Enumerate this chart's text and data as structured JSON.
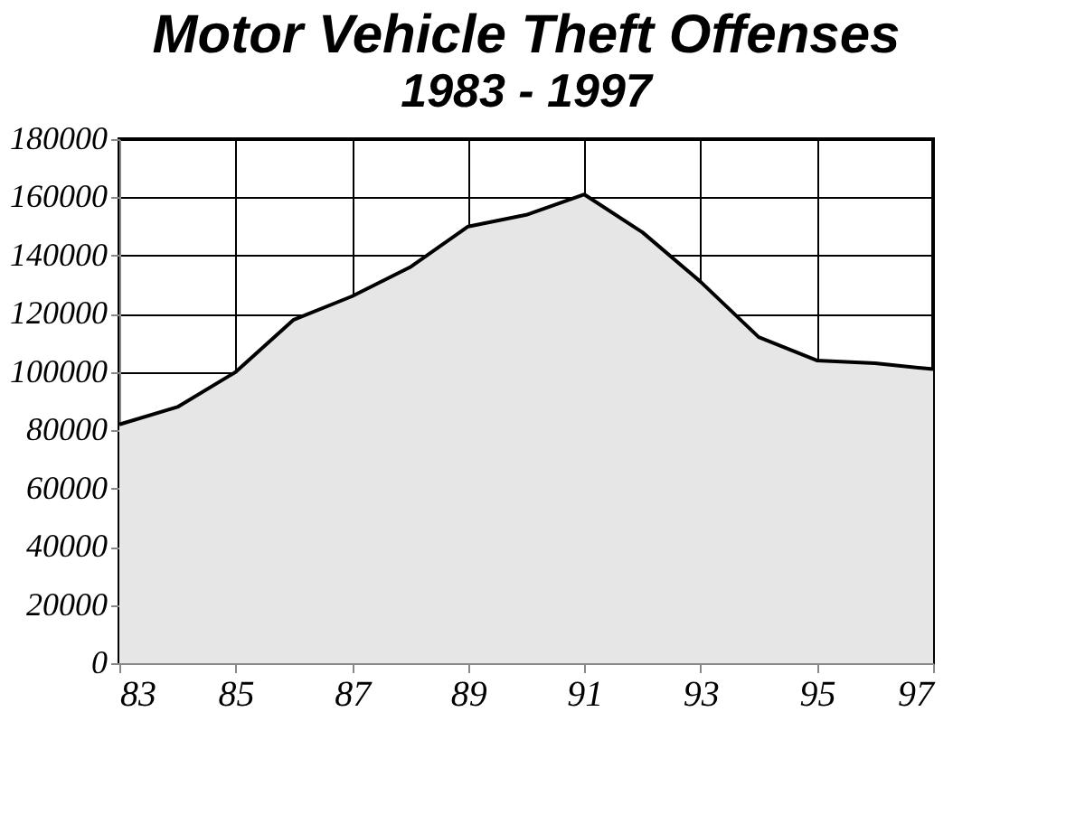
{
  "chart_data": {
    "type": "area",
    "title": "Motor Vehicle Theft Offenses",
    "subtitle": "1983 - 1997",
    "x": [
      83,
      84,
      85,
      86,
      87,
      88,
      89,
      90,
      91,
      92,
      93,
      94,
      95,
      96,
      97
    ],
    "series": [
      {
        "color": "#e6e6e6",
        "values": [
          82000,
          88000,
          100000,
          118000,
          126000,
          136000,
          150000,
          154000,
          161000,
          148000,
          131000,
          112000,
          104000,
          103000,
          101000
        ]
      }
    ],
    "xlim": [
      83,
      97
    ],
    "xticks": [
      83,
      85,
      87,
      89,
      91,
      93,
      95,
      97
    ],
    "ylim": [
      0,
      180000
    ],
    "yticks": [
      0,
      20000,
      40000,
      60000,
      80000,
      100000,
      120000,
      140000,
      160000,
      180000
    ],
    "grid": true
  }
}
